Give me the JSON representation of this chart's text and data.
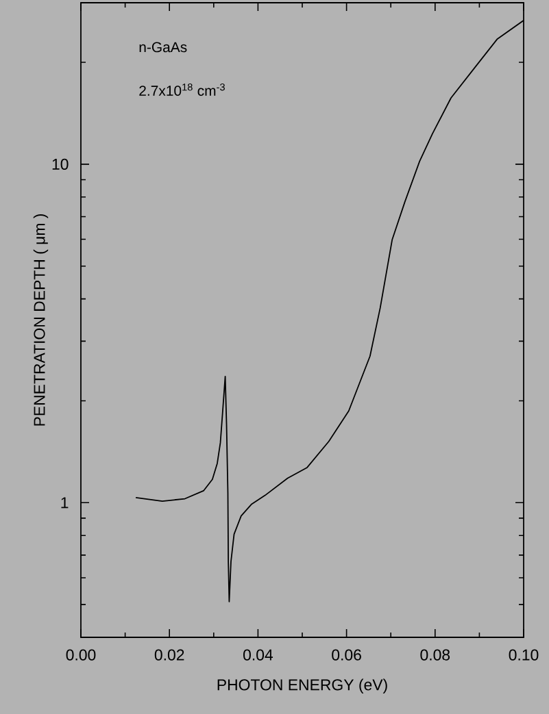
{
  "chart_data": {
    "type": "line",
    "xlabel": "PHOTON ENERGY (eV)",
    "ylabel": "PENETRATION DEPTH ( μm )",
    "annotations": [
      "n-GaAs",
      "2.7x10$^{18}$ cm$^{-3}$"
    ],
    "log": "y",
    "grid": false,
    "marker": "none",
    "line_style": "solid",
    "xlim": [
      0,
      0.1
    ],
    "ylim": [
      0.4,
      30
    ],
    "xticks": [
      {
        "value": 0,
        "label": "0.00"
      },
      {
        "value": 0.01,
        "label": null
      },
      {
        "value": 0.02,
        "label": "0.02"
      },
      {
        "value": 0.03,
        "label": null
      },
      {
        "value": 0.04,
        "label": "0.04"
      },
      {
        "value": 0.05,
        "label": null
      },
      {
        "value": 0.06,
        "label": "0.06"
      },
      {
        "value": 0.07,
        "label": null
      },
      {
        "value": 0.08,
        "label": "0.08"
      },
      {
        "value": 0.09,
        "label": null
      },
      {
        "value": 0.1,
        "label": "0.10"
      }
    ],
    "yticks": [
      {
        "value": 0.5,
        "label": null
      },
      {
        "value": 0.6,
        "label": null
      },
      {
        "value": 0.7,
        "label": null
      },
      {
        "value": 0.8,
        "label": null
      },
      {
        "value": 0.9,
        "label": null
      },
      {
        "value": 1,
        "label": "1"
      },
      {
        "value": 2,
        "label": null
      },
      {
        "value": 3,
        "label": null
      },
      {
        "value": 4,
        "label": null
      },
      {
        "value": 5,
        "label": null
      },
      {
        "value": 6,
        "label": null
      },
      {
        "value": 7,
        "label": null
      },
      {
        "value": 8,
        "label": null
      },
      {
        "value": 9,
        "label": null
      },
      {
        "value": 10,
        "label": "10"
      },
      {
        "value": 20,
        "label": null
      }
    ],
    "series": [
      {
        "color": "#000000",
        "x": [
          0.0124,
          0.0184,
          0.0235,
          0.0277,
          0.0297,
          0.0308,
          0.0315,
          0.032,
          0.0326,
          0.0329,
          0.0332,
          0.0333,
          0.0335,
          0.0339,
          0.0346,
          0.0362,
          0.0385,
          0.0416,
          0.0467,
          0.0511,
          0.056,
          0.0605,
          0.0653,
          0.0676,
          0.0703,
          0.0732,
          0.0765,
          0.0794,
          0.0836,
          0.0891,
          0.094,
          0.1
        ],
        "values": [
          1.035,
          1.01,
          1.027,
          1.084,
          1.172,
          1.306,
          1.502,
          1.84,
          2.36,
          1.7,
          1.067,
          0.67,
          0.51,
          0.67,
          0.807,
          0.914,
          0.988,
          1.051,
          1.181,
          1.27,
          1.517,
          1.867,
          2.71,
          3.76,
          5.98,
          7.76,
          10.2,
          12.3,
          15.7,
          19.4,
          23.4,
          26.6
        ]
      }
    ]
  }
}
